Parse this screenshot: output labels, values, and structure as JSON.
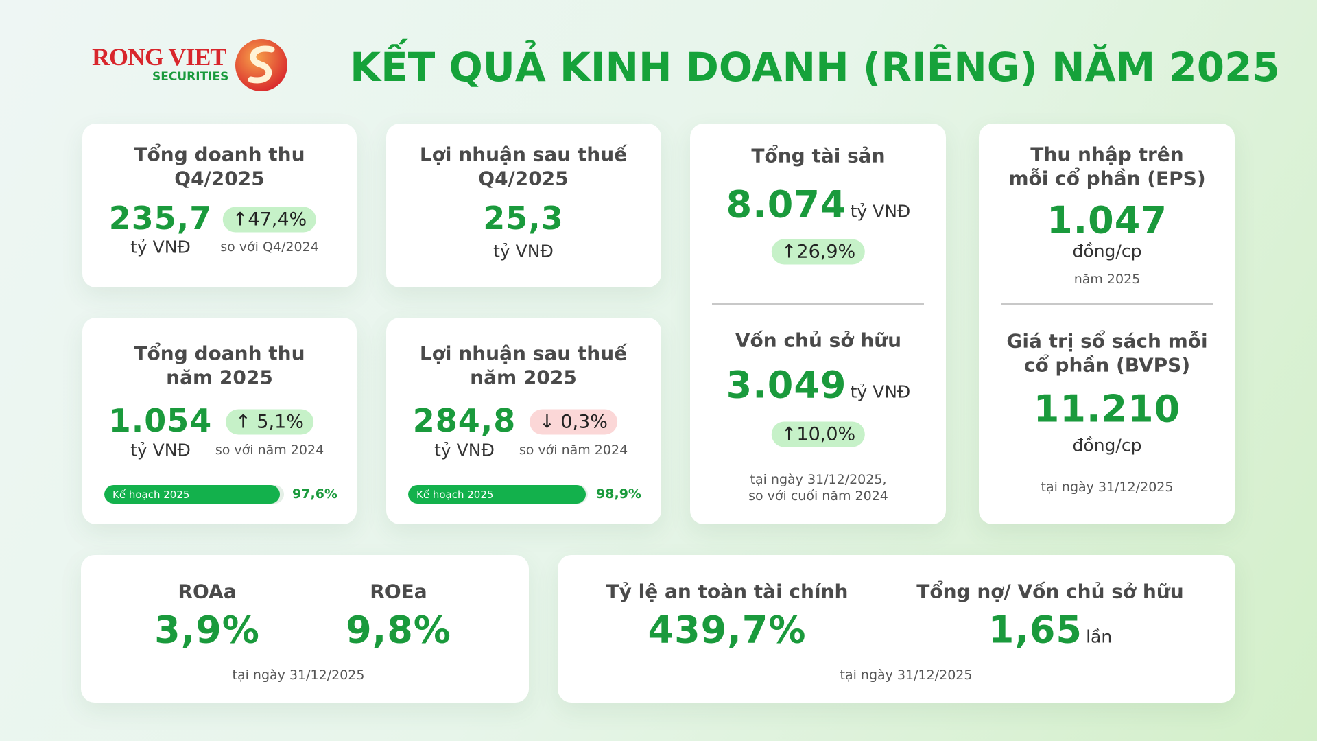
{
  "header": {
    "logo_name": "RONG VIET",
    "logo_sub": "SECURITIES",
    "title": "KẾT QUẢ KINH DOANH (RIÊNG) NĂM 2025"
  },
  "cards": [
    {
      "title": [
        "Tổng doanh thu",
        "Q4/2025"
      ],
      "value": "235,7",
      "unit": "tỷ VNĐ",
      "change": "↑47,4%",
      "change_note": "so với Q4/2024"
    },
    {
      "title": [
        "Lợi nhuận sau thuế",
        "Q4/2025"
      ],
      "value": "25,3",
      "unit": "tỷ VNĐ"
    },
    {
      "title": [
        "Tổng doanh thu",
        "năm 2025"
      ],
      "value": "1.054",
      "unit": "tỷ VNĐ",
      "change": "↑ 5,1%",
      "change_note": "so với năm 2024",
      "plan": {
        "label": "Kế hoạch 2025",
        "value": 97.6,
        "value_label": "97,6%"
      }
    },
    {
      "title": [
        "Lợi nhuận sau thuế",
        "năm 2025"
      ],
      "value": "284,8",
      "unit": "tỷ VNĐ",
      "change": "↓ 0,3%",
      "change_note": "so với năm 2024",
      "plan": {
        "label": "Kế hoạch 2025",
        "value": 98.9,
        "value_label": "98,9%"
      }
    }
  ],
  "balance": {
    "assets": {
      "title": "Tổng tài sản",
      "value": "8.074",
      "unit": "tỷ VNĐ",
      "change": "↑26,9%"
    },
    "equity": {
      "title": "Vốn chủ sở hữu",
      "value": "3.049",
      "unit": "tỷ VNĐ",
      "change": "↑10,0%",
      "note": [
        "tại ngày 31/12/2025,",
        "so với cuối năm 2024"
      ]
    }
  },
  "per_share": {
    "eps": {
      "title": [
        "Thu nhập trên",
        "mỗi cổ phần (EPS)"
      ],
      "value": "1.047",
      "unit": "đồng/cp",
      "note": "năm 2025"
    },
    "bvps": {
      "title": [
        "Giá trị sổ sách mỗi",
        "cổ phần (BVPS)"
      ],
      "value": "11.210",
      "unit": "đồng/cp",
      "note": "tại ngày 31/12/2025"
    }
  },
  "ratios": {
    "items": [
      {
        "title": "ROAa",
        "value": "3,9%"
      },
      {
        "title": "ROEa",
        "value": "9,8%"
      }
    ],
    "note": "tại ngày 31/12/2025"
  },
  "safety": {
    "items": [
      {
        "title": "Tỷ lệ an toàn tài chính",
        "value": "439,7%"
      },
      {
        "title": "Tổng nợ/ Vốn chủ sở hữu",
        "value": "1,65",
        "unit": "lần"
      }
    ],
    "note": "tại ngày 31/12/2025"
  }
}
